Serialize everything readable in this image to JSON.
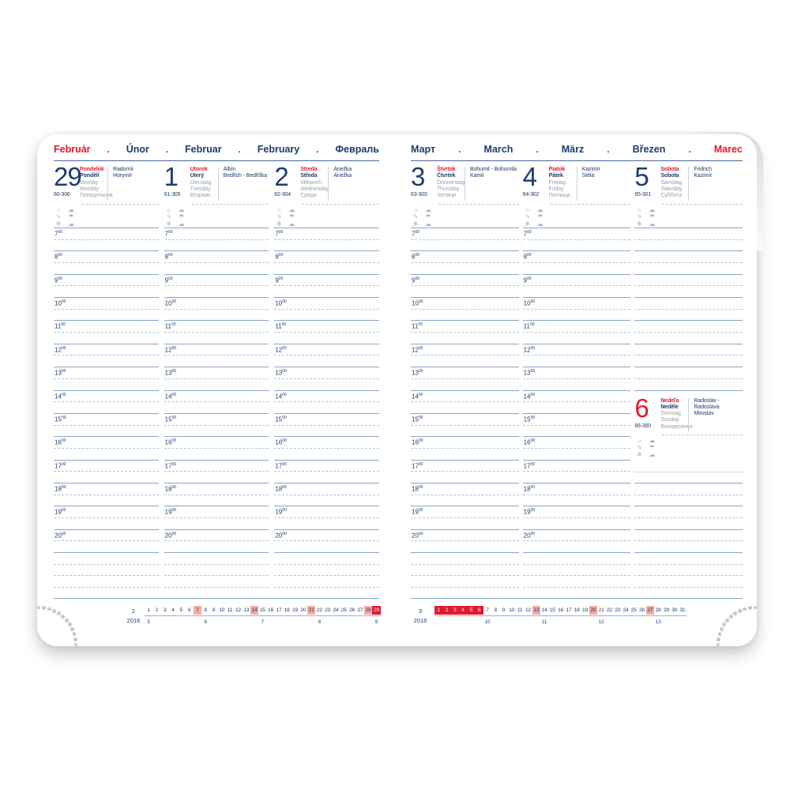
{
  "hour_sup": "00",
  "hours": [
    "7",
    "8",
    "9",
    "10",
    "11",
    "12",
    "13",
    "14",
    "15",
    "16",
    "17",
    "18",
    "19",
    "20"
  ],
  "weather_rows": [
    {
      "icons": [
        "sun-icon",
        "sun-cloud-icon"
      ],
      "glyphs": [
        "☼",
        "☁"
      ]
    },
    {
      "icons": [
        "lightning-icon",
        "rain-cloud-icon"
      ],
      "glyphs": [
        "ϟ",
        "☂"
      ]
    },
    {
      "icons": [
        "snowflake-icon",
        "wind-cloud-icon"
      ],
      "glyphs": [
        "❄",
        "☁"
      ]
    }
  ],
  "colors": {
    "navy": "#1e3c6e",
    "red": "#e3192d",
    "gray_day_names": "#9aa0aa",
    "rule_line": "#8aa5c5",
    "dashed_line": "#b7c6da",
    "sunday_highlight": "#f6a9a1",
    "current_week_highlight": "#e3192d"
  },
  "page_left": {
    "months": [
      {
        "label": "Február",
        "accent": true
      },
      {
        "label": "Únor",
        "accent": false
      },
      {
        "label": "Februar",
        "accent": false
      },
      {
        "label": "February",
        "accent": false
      },
      {
        "label": "Февраль",
        "accent": false
      }
    ],
    "days": [
      {
        "num": "29",
        "accent": false,
        "day_of_year": "60-306",
        "name_sk": "Pondelok",
        "name_cz": "Pondělí",
        "name_de": "Montag",
        "name_en": "Monday",
        "name_ru": "Понедельник",
        "name_days": [
          "Radomír",
          "Horymír"
        ]
      },
      {
        "num": "1",
        "accent": false,
        "day_of_year": "61-305",
        "name_sk": "Utorok",
        "name_cz": "Úterý",
        "name_de": "Dienstag",
        "name_en": "Tuesday",
        "name_ru": "Вторник",
        "name_days": [
          "Albín",
          "Bedřich - Bedřiška"
        ]
      },
      {
        "num": "2",
        "accent": false,
        "day_of_year": "62-304",
        "name_sk": "Streda",
        "name_cz": "Středa",
        "name_de": "Mittwoch",
        "name_en": "Wednesday",
        "name_ru": "Среда",
        "name_days": [
          "Anežka",
          "Anežka"
        ]
      }
    ],
    "mini_calendar": {
      "month": "2",
      "year": "2016",
      "dates": [
        1,
        2,
        3,
        4,
        5,
        6,
        7,
        8,
        9,
        10,
        11,
        12,
        13,
        14,
        15,
        16,
        17,
        18,
        19,
        20,
        21,
        22,
        23,
        24,
        25,
        26,
        27,
        28,
        29
      ],
      "sunday_dates": [
        7,
        14,
        21,
        28
      ],
      "current_week_dates": [
        29
      ],
      "week_numbers": [
        {
          "num": "5",
          "under_date": 1
        },
        {
          "num": "6",
          "under_date": 8
        },
        {
          "num": "7",
          "under_date": 15
        },
        {
          "num": "8",
          "under_date": 22
        },
        {
          "num": "9",
          "under_date": 29
        }
      ]
    }
  },
  "page_right": {
    "months": [
      {
        "label": "Март",
        "accent": false
      },
      {
        "label": "March",
        "accent": false
      },
      {
        "label": "März",
        "accent": false
      },
      {
        "label": "Březen",
        "accent": false
      },
      {
        "label": "Marec",
        "accent": true
      }
    ],
    "days": [
      {
        "num": "3",
        "accent": false,
        "day_of_year": "63-303",
        "name_sk": "Štvrtok",
        "name_cz": "Čtvrtek",
        "name_de": "Donnerstag",
        "name_en": "Thursday",
        "name_ru": "Четверг",
        "name_days": [
          "Bohumil - Bohumila",
          "Kamil"
        ]
      },
      {
        "num": "4",
        "accent": false,
        "day_of_year": "64-302",
        "name_sk": "Piatok",
        "name_cz": "Pátek",
        "name_de": "Freitag",
        "name_en": "Friday",
        "name_ru": "Пятница",
        "name_days": [
          "Kazimír",
          "Stela"
        ]
      },
      {
        "num": "5",
        "accent": false,
        "day_of_year": "65-301",
        "name_sk": "Sobota",
        "name_cz": "Sobota",
        "name_de": "Samstag",
        "name_en": "Saturday",
        "name_ru": "Суббота",
        "name_days": [
          "Fridrich",
          "Kazimír"
        ]
      },
      {
        "num": "6",
        "accent": true,
        "day_of_year": "66-300",
        "name_sk": "Nedeľa",
        "name_cz": "Neděle",
        "name_de": "Sonntag",
        "name_en": "Sunday",
        "name_ru": "Воскресенье",
        "name_days": [
          "Radoslav - Radoslava",
          "Miroslav"
        ]
      }
    ],
    "mini_calendar": {
      "month": "3",
      "year": "2016",
      "dates": [
        1,
        2,
        3,
        4,
        5,
        6,
        7,
        8,
        9,
        10,
        11,
        12,
        13,
        14,
        15,
        16,
        17,
        18,
        19,
        20,
        21,
        22,
        23,
        24,
        25,
        26,
        27,
        28,
        29,
        30,
        31
      ],
      "sunday_dates": [
        13,
        20,
        27
      ],
      "current_week_dates": [
        1,
        2,
        3,
        4,
        5,
        6
      ],
      "week_numbers": [
        {
          "num": "10",
          "under_date": 7
        },
        {
          "num": "11",
          "under_date": 14
        },
        {
          "num": "12",
          "under_date": 21
        },
        {
          "num": "13",
          "under_date": 28
        }
      ]
    }
  }
}
